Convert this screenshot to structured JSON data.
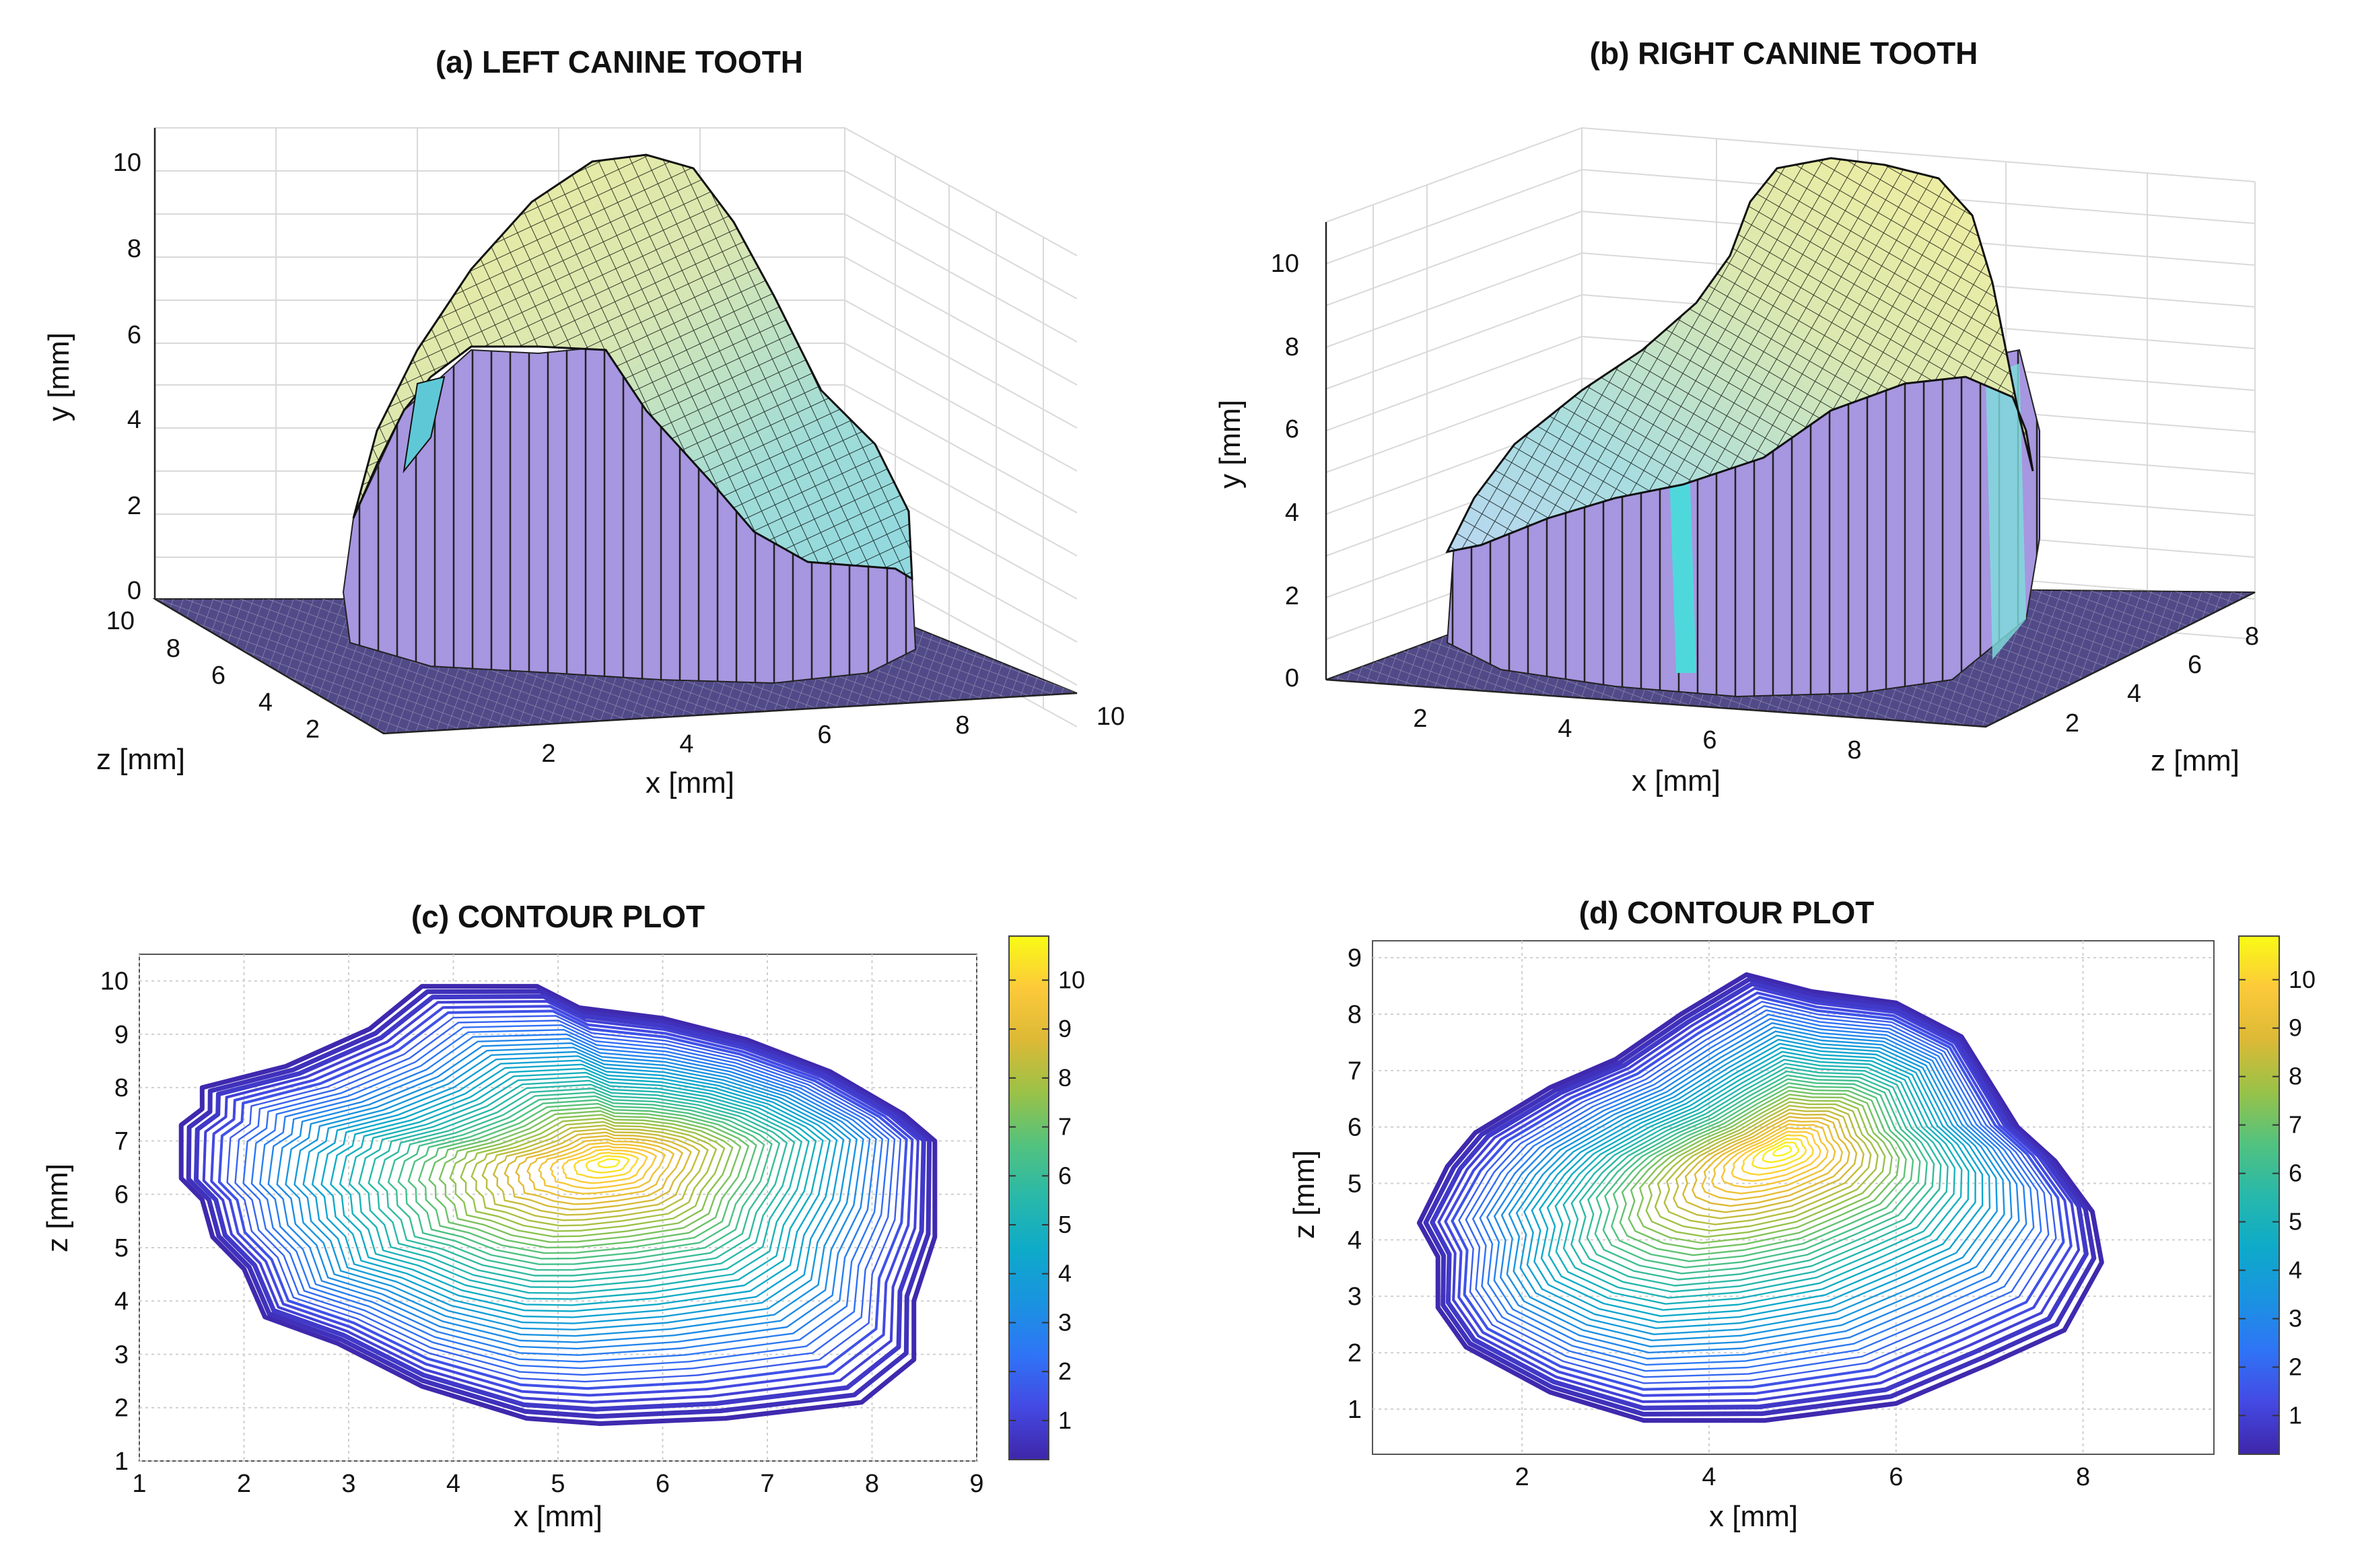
{
  "chart_data": [
    {
      "id": "a",
      "type": "surface3d",
      "title": "(a) LEFT CANINE TOOTH",
      "xlabel": "x [mm]",
      "ylabel": "y [mm]",
      "zlabel": "z [mm]",
      "x_ticks": [
        "2",
        "4",
        "6",
        "8",
        "10"
      ],
      "y_ticks": [
        "0",
        "2",
        "4",
        "6",
        "8",
        "10"
      ],
      "z_ticks": [
        "2",
        "4",
        "6",
        "8",
        "10"
      ],
      "peak_height": 10.3
    },
    {
      "id": "b",
      "type": "surface3d",
      "title": "(b) RIGHT CANINE TOOTH",
      "xlabel": "x [mm]",
      "ylabel": "y [mm]",
      "zlabel": "z [mm]",
      "x_ticks": [
        "2",
        "4",
        "6",
        "8"
      ],
      "y_ticks": [
        "0",
        "2",
        "4",
        "6",
        "8",
        "10"
      ],
      "z_ticks": [
        "2",
        "4",
        "6",
        "8"
      ],
      "peak_height": 10.8
    },
    {
      "id": "c",
      "type": "contour",
      "title": "(c) CONTOUR PLOT",
      "xlabel": "x [mm]",
      "ylabel": "z [mm]",
      "xlim": [
        1,
        9
      ],
      "ylim": [
        1,
        10.5
      ],
      "x_ticks": [
        "1",
        "2",
        "3",
        "4",
        "5",
        "6",
        "7",
        "8",
        "9"
      ],
      "y_ticks": [
        "1",
        "2",
        "3",
        "4",
        "5",
        "6",
        "7",
        "8",
        "9",
        "10"
      ],
      "colorbar_ticks": [
        "1",
        "2",
        "3",
        "4",
        "5",
        "6",
        "7",
        "8",
        "9",
        "10"
      ],
      "colorbar_range": [
        0.2,
        10.9
      ],
      "outline": [
        [
          1.4,
          6.3
        ],
        [
          1.4,
          7.3
        ],
        [
          1.6,
          7.6
        ],
        [
          1.6,
          8
        ],
        [
          2.4,
          8.4
        ],
        [
          3.2,
          9.1
        ],
        [
          3.7,
          9.9
        ],
        [
          4.8,
          9.9
        ],
        [
          5.2,
          9.5
        ],
        [
          6,
          9.3
        ],
        [
          6.8,
          8.9
        ],
        [
          7.6,
          8.3
        ],
        [
          8.3,
          7.5
        ],
        [
          8.6,
          7
        ],
        [
          8.6,
          5.2
        ],
        [
          8.4,
          4
        ],
        [
          8.4,
          2.9
        ],
        [
          7.9,
          2.1
        ],
        [
          6.6,
          1.8
        ],
        [
          5.4,
          1.7
        ],
        [
          4.7,
          1.8
        ],
        [
          3.7,
          2.4
        ],
        [
          2.9,
          3.2
        ],
        [
          2.2,
          3.7
        ],
        [
          2,
          4.6
        ],
        [
          1.7,
          5.2
        ],
        [
          1.6,
          5.9
        ]
      ],
      "peak": [
        5.5,
        6.6
      ],
      "peak_value": 10.6,
      "ridge_angle_deg": 25
    },
    {
      "id": "d",
      "type": "contour",
      "title": "(d) CONTOUR PLOT",
      "xlabel": "x [mm]",
      "ylabel": "z [mm]",
      "xlim": [
        0.4,
        9.4
      ],
      "ylim": [
        0.2,
        9.3
      ],
      "x_ticks": [
        "2",
        "4",
        "6",
        "8"
      ],
      "x_tick_values": [
        2,
        4,
        6,
        8
      ],
      "y_ticks": [
        "1",
        "2",
        "3",
        "4",
        "5",
        "6",
        "7",
        "8",
        "9"
      ],
      "colorbar_ticks": [
        "1",
        "2",
        "3",
        "4",
        "5",
        "6",
        "7",
        "8",
        "9",
        "10"
      ],
      "colorbar_range": [
        0.2,
        10.9
      ],
      "outline": [
        [
          0.9,
          4.3
        ],
        [
          1.2,
          5.3
        ],
        [
          1.5,
          5.9
        ],
        [
          2.3,
          6.7
        ],
        [
          3,
          7.2
        ],
        [
          3.7,
          8
        ],
        [
          4.4,
          8.7
        ],
        [
          5.1,
          8.4
        ],
        [
          6,
          8.2
        ],
        [
          6.7,
          7.6
        ],
        [
          7,
          6.8
        ],
        [
          7.3,
          6
        ],
        [
          7.7,
          5.4
        ],
        [
          8.1,
          4.5
        ],
        [
          8.2,
          3.6
        ],
        [
          8,
          3
        ],
        [
          7.8,
          2.4
        ],
        [
          7,
          1.8
        ],
        [
          6,
          1.1
        ],
        [
          4.6,
          0.8
        ],
        [
          3.3,
          0.8
        ],
        [
          2.3,
          1.3
        ],
        [
          1.4,
          2.1
        ],
        [
          1.1,
          2.8
        ],
        [
          1.1,
          3.7
        ]
      ],
      "peak": [
        4.8,
        5.6
      ],
      "peak_value": 10.8,
      "ridge_angle_deg": 35
    }
  ]
}
